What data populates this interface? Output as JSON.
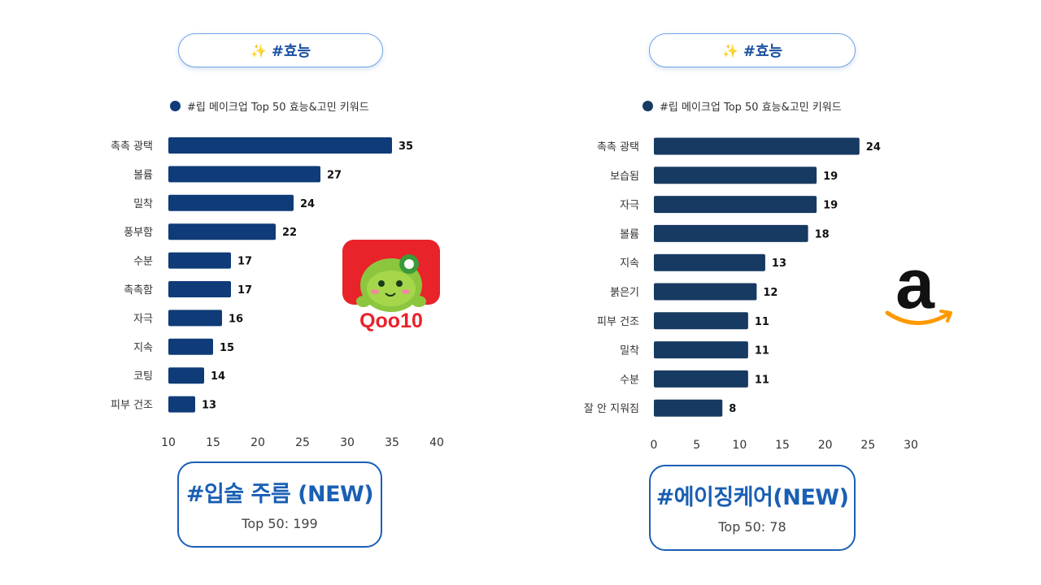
{
  "colors": {
    "bar_left": "#0f3c78",
    "bar_right": "#173a62",
    "accent": "#1a5fb4",
    "qoo10_red": "#e8232a",
    "amazon_orange": "#f90"
  },
  "left": {
    "tag": {
      "icon": "sparkles-icon",
      "label": "#효능"
    },
    "legend_label": "#립 메이크업 Top 50 효능&고민 키워드",
    "summary": {
      "title": "#입술 주름 (NEW)",
      "subtitle": "Top 50: 199"
    },
    "logo": {
      "name": "qoo10-logo",
      "text": "Qoo10"
    }
  },
  "right": {
    "tag": {
      "icon": "sparkles-icon",
      "label": "#효능"
    },
    "legend_label": "#립 메이크업 Top 50 효능&고민 키워드",
    "summary": {
      "title": "#에이징케어(NEW)",
      "subtitle": "Top 50: 78"
    },
    "logo": {
      "name": "amazon-logo"
    }
  },
  "chart_data": [
    {
      "type": "bar",
      "orientation": "horizontal",
      "categories": [
        "촉촉 광택",
        "볼륨",
        "밀착",
        "풍부함",
        "수분",
        "촉촉함",
        "자극",
        "지속",
        "코팅",
        "피부 건조"
      ],
      "values": [
        35,
        27,
        24,
        22,
        17,
        17,
        16,
        15,
        14,
        13
      ],
      "xlim": [
        10,
        40
      ],
      "xticks": [
        10,
        15,
        20,
        25,
        30,
        35,
        40
      ],
      "grid": false,
      "legend": "top",
      "data_labels": true
    },
    {
      "type": "bar",
      "orientation": "horizontal",
      "categories": [
        "촉촉 광택",
        "보습됨",
        "자극",
        "볼륨",
        "지속",
        "붉은기",
        "피부 건조",
        "밀착",
        "수분",
        "잘 안 지워짐"
      ],
      "values": [
        24,
        19,
        19,
        18,
        13,
        12,
        11,
        11,
        11,
        8
      ],
      "xlim": [
        0,
        30
      ],
      "xticks": [
        0,
        5,
        10,
        15,
        20,
        25,
        30
      ],
      "grid": false,
      "legend": "top",
      "data_labels": true
    }
  ]
}
